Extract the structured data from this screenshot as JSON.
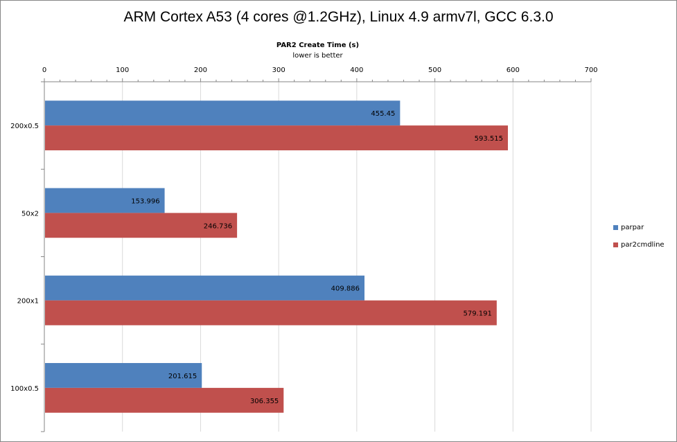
{
  "chart_data": {
    "type": "bar",
    "orientation": "horizontal",
    "title": "ARM Cortex A53 (4 cores @1.2GHz), Linux 4.9 armv7l, GCC 6.3.0",
    "xlabel": "PAR2 Create Time (s)",
    "xlabel_note": "lower is better",
    "ylabel": "",
    "xlim": [
      0,
      700
    ],
    "xticks": [
      0,
      100,
      200,
      300,
      400,
      500,
      600,
      700
    ],
    "grid": true,
    "legend_position": "right",
    "categories": [
      "200x0.5",
      "50x2",
      "200x1",
      "100x0.5"
    ],
    "series": [
      {
        "name": "parpar",
        "color": "#4f81bd",
        "values": [
          455.45,
          153.996,
          409.886,
          201.615
        ],
        "labels": [
          "455.45",
          "153.996",
          "409.886",
          "201.615"
        ]
      },
      {
        "name": "par2cmdline",
        "color": "#c0504d",
        "values": [
          593.515,
          246.736,
          579.191,
          306.355
        ],
        "labels": [
          "593.515",
          "246.736",
          "579.191",
          "306.355"
        ]
      }
    ]
  }
}
